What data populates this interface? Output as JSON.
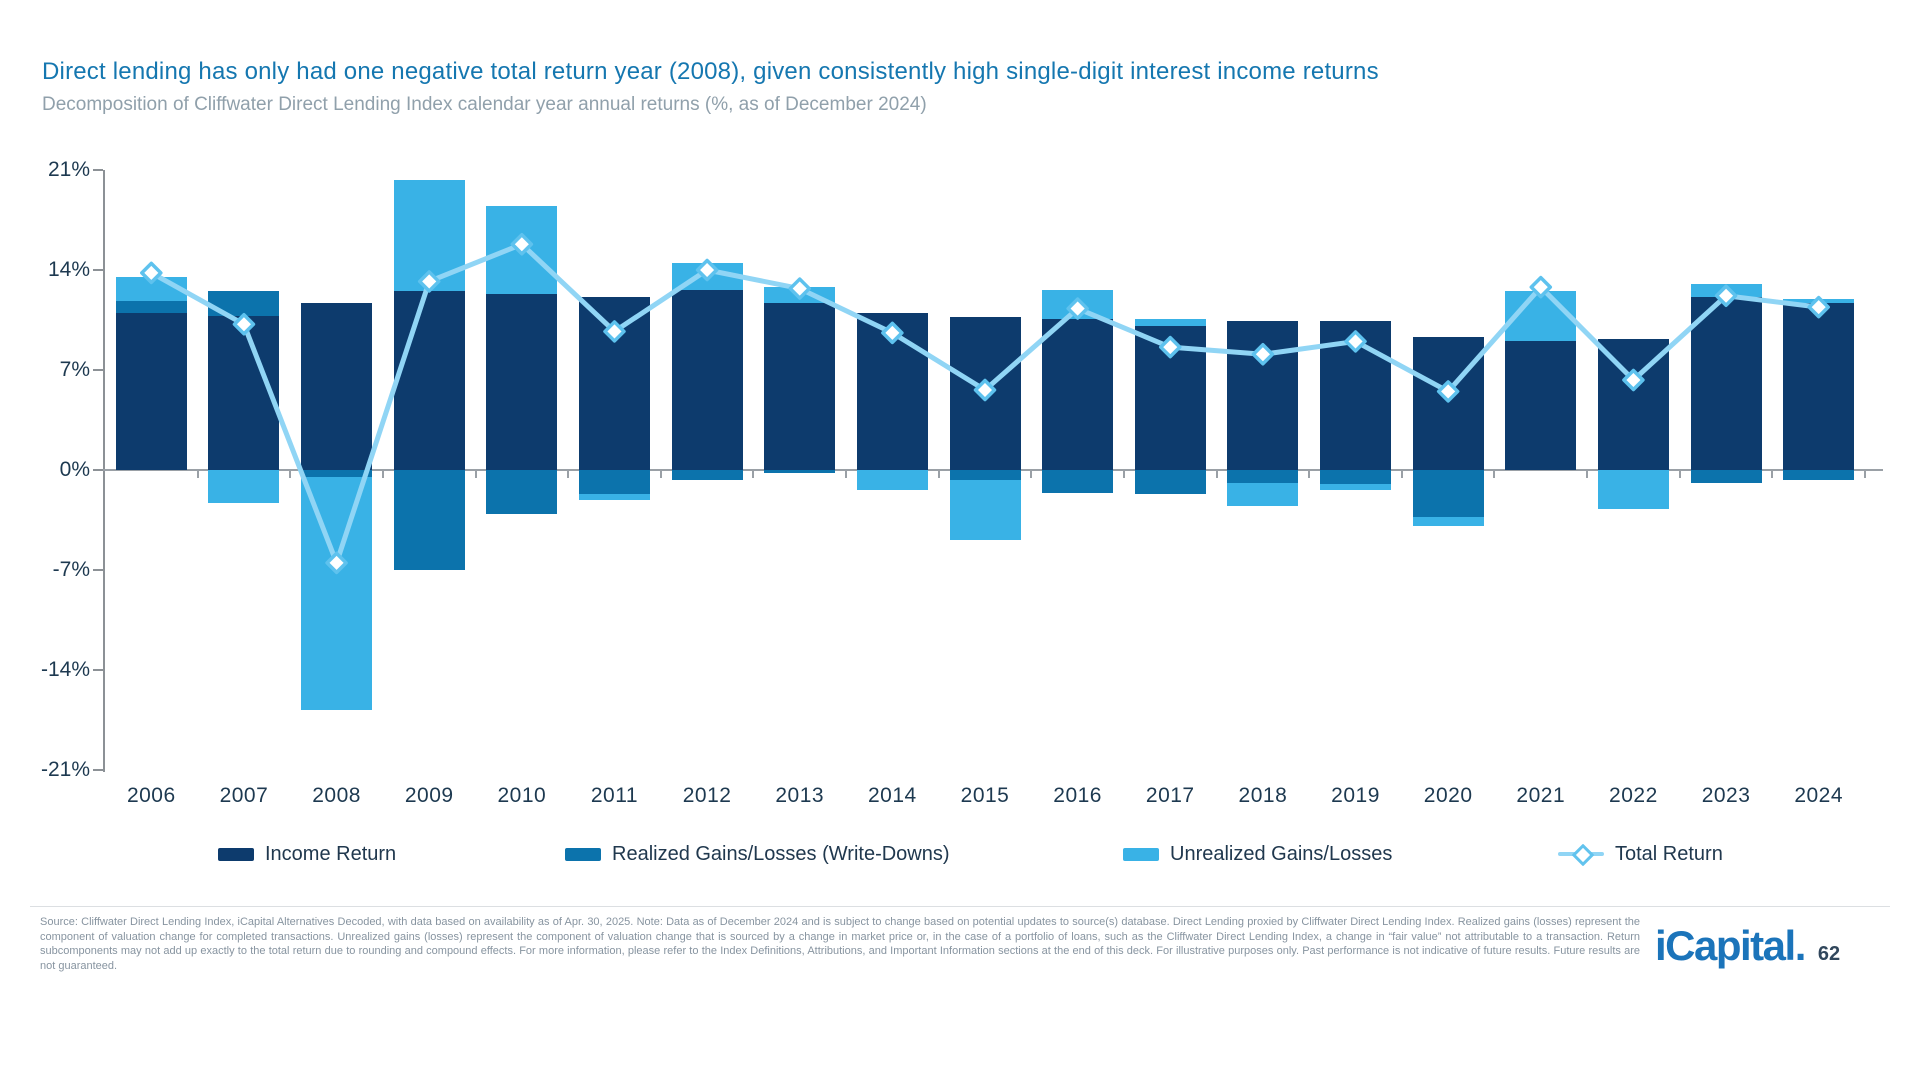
{
  "page": {
    "title": "Direct lending has only had one negative total return year (2008), given consistently high single-digit interest income returns",
    "subtitle": "Decomposition of Cliffwater Direct Lending Index calendar year annual returns (%, as of December 2024)",
    "footer": "Source: Cliffwater Direct Lending Index, iCapital Alternatives Decoded, with data based on availability as of Apr. 30, 2025. Note: Data as of December 2024 and is subject to change based on potential updates to source(s) database. Direct Lending proxied by Cliffwater Direct Lending Index. Realized gains (losses) represent the component of valuation change for completed transactions. Unrealized gains (losses) represent the component of valuation change that is sourced by a change in market price or, in the case of a portfolio of loans, such as the Cliffwater Direct Lending Index, a change in “fair value” not attributable to a transaction. Return subcomponents may not add up exactly to the total return due to rounding and compound effects. For more information, please refer to the Index Definitions, Attributions, and Important Information sections at the end of this deck. For illustrative purposes only. Past performance is not indicative of future results. Future results are not guaranteed.",
    "logo_text": "iCapital.",
    "page_number": "62"
  },
  "chart_data": {
    "type": "bar",
    "subtype": "stacked-bars-with-line",
    "title": "Decomposition of Cliffwater Direct Lending Index calendar year annual returns (%, as of December 2024)",
    "categories": [
      "2006",
      "2007",
      "2008",
      "2009",
      "2010",
      "2011",
      "2012",
      "2013",
      "2014",
      "2015",
      "2016",
      "2017",
      "2018",
      "2019",
      "2020",
      "2021",
      "2022",
      "2023",
      "2024"
    ],
    "series": [
      {
        "name": "Income Return",
        "type": "bar",
        "color": "#0d3b6d",
        "values": [
          11.0,
          10.8,
          11.7,
          12.5,
          12.3,
          12.1,
          12.6,
          11.7,
          11.0,
          10.7,
          10.6,
          10.1,
          10.4,
          10.4,
          9.3,
          9.0,
          9.2,
          12.1,
          11.7
        ]
      },
      {
        "name": "Realized Gains/Losses (Write-Downs)",
        "type": "bar",
        "color": "#0c73ac",
        "values": [
          0.8,
          1.7,
          -0.5,
          -7.0,
          -3.1,
          -1.7,
          -0.7,
          -0.2,
          0.0,
          -0.7,
          -1.6,
          -1.7,
          -0.9,
          -1.0,
          -3.3,
          0.0,
          0.0,
          -0.9,
          -0.7
        ]
      },
      {
        "name": "Unrealized Gains/Losses",
        "type": "bar",
        "color": "#39b2e6",
        "values": [
          1.7,
          -2.3,
          -16.3,
          7.8,
          6.2,
          -0.4,
          1.9,
          1.1,
          -1.4,
          -4.2,
          2.0,
          0.5,
          -1.6,
          -0.4,
          -0.6,
          3.5,
          -2.7,
          0.9,
          0.3
        ]
      },
      {
        "name": "Total Return",
        "type": "line",
        "color": "#90d5f5",
        "marker": "diamond",
        "marker_fill": "#ffffff",
        "marker_stroke": "#5ec2ee",
        "values": [
          13.8,
          10.2,
          -6.5,
          13.2,
          15.8,
          9.7,
          14.0,
          12.7,
          9.6,
          5.6,
          11.3,
          8.6,
          8.1,
          9.0,
          5.5,
          12.8,
          6.3,
          12.2,
          11.4
        ]
      }
    ],
    "ylim": [
      -21,
      21
    ],
    "yticks": [
      21,
      14,
      7,
      0,
      -7,
      -14,
      -21
    ],
    "ytick_suffix": "%",
    "grid": false,
    "legend_position": "bottom"
  }
}
